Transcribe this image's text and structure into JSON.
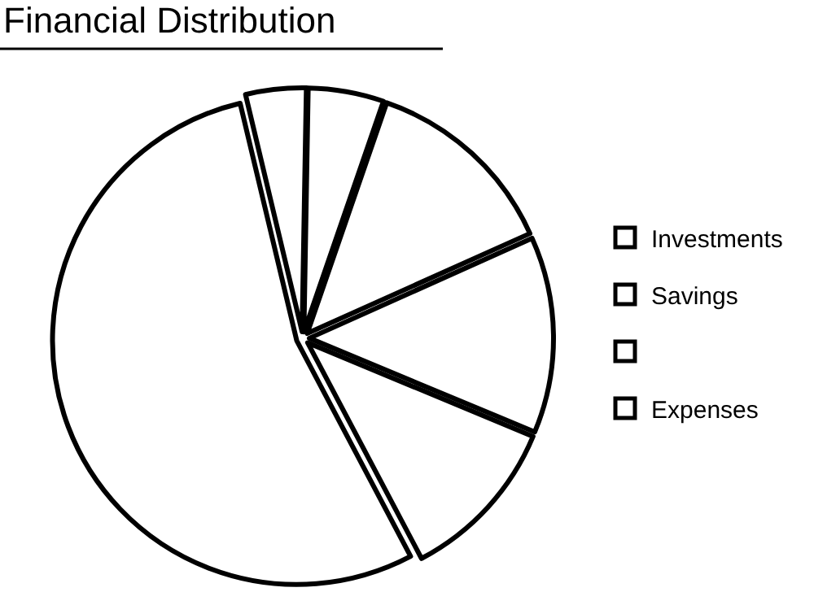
{
  "chart_data": {
    "type": "pie",
    "title": "Financial Distribution",
    "categories": [
      "Investments",
      "Savings",
      null,
      "Expenses",
      null,
      null
    ],
    "values": [
      13,
      13,
      11,
      54,
      4,
      5
    ],
    "colors": [
      "#ffffff",
      "#ffffff",
      "#ffffff",
      "#ffffff",
      "#ffffff",
      "#ffffff"
    ],
    "legend": "right"
  }
}
